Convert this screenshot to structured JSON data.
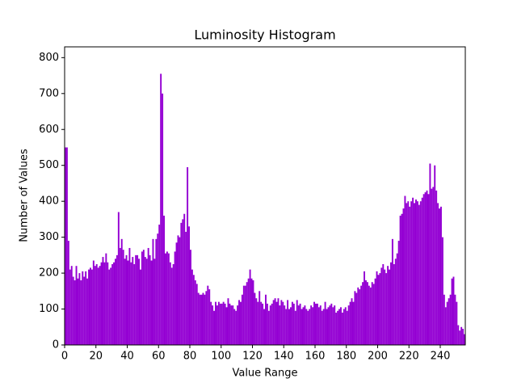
{
  "chart_data": {
    "type": "histogram",
    "title": "Luminosity Histogram",
    "xlabel": "Value Range",
    "ylabel": "Number of Values",
    "color": "#9400d3",
    "grid": false,
    "bins": [
      0,
      1,
      2,
      3,
      4,
      5,
      6,
      7,
      8,
      9,
      10,
      11,
      12,
      13,
      14,
      15,
      16,
      17,
      18,
      19,
      20,
      21,
      22,
      23,
      24,
      25,
      26,
      27,
      28,
      29,
      30,
      31,
      32,
      33,
      34,
      35,
      36,
      37,
      38,
      39,
      40,
      41,
      42,
      43,
      44,
      45,
      46,
      47,
      48,
      49,
      50,
      51,
      52,
      53,
      54,
      55,
      56,
      57,
      58,
      59,
      60,
      61,
      62,
      63,
      64,
      65,
      66,
      67,
      68,
      69,
      70,
      71,
      72,
      73,
      74,
      75,
      76,
      77,
      78,
      79,
      80,
      81,
      82,
      83,
      84,
      85,
      86,
      87,
      88,
      89,
      90,
      91,
      92,
      93,
      94,
      95,
      96,
      97,
      98,
      99,
      100,
      101,
      102,
      103,
      104,
      105,
      106,
      107,
      108,
      109,
      110,
      111,
      112,
      113,
      114,
      115,
      116,
      117,
      118,
      119,
      120,
      121,
      122,
      123,
      124,
      125,
      126,
      127,
      128,
      129,
      130,
      131,
      132,
      133,
      134,
      135,
      136,
      137,
      138,
      139,
      140,
      141,
      142,
      143,
      144,
      145,
      146,
      147,
      148,
      149,
      150,
      151,
      152,
      153,
      154,
      155,
      156,
      157,
      158,
      159,
      160,
      161,
      162,
      163,
      164,
      165,
      166,
      167,
      168,
      169,
      170,
      171,
      172,
      173,
      174,
      175,
      176,
      177,
      178,
      179,
      180,
      181,
      182,
      183,
      184,
      185,
      186,
      187,
      188,
      189,
      190,
      191,
      192,
      193,
      194,
      195,
      196,
      197,
      198,
      199,
      200,
      201,
      202,
      203,
      204,
      205,
      206,
      207,
      208,
      209,
      210,
      211,
      212,
      213,
      214,
      215,
      216,
      217,
      218,
      219,
      220,
      221,
      222,
      223,
      224,
      225,
      226,
      227,
      228,
      229,
      230,
      231,
      232,
      233,
      234,
      235,
      236,
      237,
      238,
      239,
      240,
      241,
      242,
      243,
      244,
      245,
      246,
      247,
      248,
      249,
      250,
      251,
      252,
      253,
      254,
      255,
      256
    ],
    "counts": [
      550,
      550,
      290,
      210,
      220,
      190,
      180,
      220,
      185,
      200,
      180,
      205,
      190,
      205,
      185,
      210,
      215,
      210,
      235,
      220,
      225,
      215,
      220,
      230,
      245,
      230,
      255,
      230,
      210,
      215,
      225,
      230,
      240,
      250,
      370,
      270,
      295,
      265,
      240,
      250,
      235,
      270,
      230,
      245,
      225,
      250,
      250,
      240,
      210,
      260,
      265,
      245,
      240,
      270,
      250,
      235,
      295,
      240,
      295,
      310,
      335,
      755,
      700,
      360,
      255,
      260,
      255,
      230,
      215,
      225,
      260,
      285,
      305,
      300,
      340,
      350,
      365,
      315,
      495,
      330,
      265,
      210,
      195,
      180,
      170,
      145,
      140,
      140,
      145,
      140,
      150,
      165,
      155,
      120,
      110,
      95,
      120,
      110,
      120,
      115,
      115,
      120,
      115,
      105,
      130,
      115,
      110,
      110,
      100,
      95,
      110,
      125,
      120,
      140,
      165,
      165,
      175,
      185,
      210,
      185,
      180,
      145,
      130,
      120,
      150,
      120,
      115,
      100,
      140,
      115,
      95,
      110,
      115,
      125,
      130,
      120,
      130,
      110,
      125,
      120,
      110,
      100,
      125,
      100,
      105,
      120,
      115,
      95,
      125,
      110,
      115,
      100,
      105,
      110,
      100,
      95,
      100,
      110,
      105,
      120,
      115,
      115,
      105,
      110,
      95,
      100,
      120,
      100,
      105,
      110,
      115,
      105,
      110,
      90,
      95,
      100,
      105,
      90,
      100,
      105,
      95,
      110,
      120,
      130,
      120,
      150,
      145,
      160,
      155,
      165,
      175,
      205,
      180,
      175,
      165,
      160,
      175,
      170,
      185,
      205,
      195,
      200,
      215,
      225,
      210,
      200,
      220,
      210,
      230,
      295,
      225,
      240,
      255,
      290,
      360,
      365,
      380,
      415,
      395,
      400,
      385,
      400,
      410,
      395,
      405,
      400,
      390,
      400,
      410,
      420,
      425,
      430,
      420,
      505,
      435,
      440,
      500,
      430,
      395,
      380,
      385,
      300,
      140,
      105,
      120,
      130,
      140,
      185,
      190,
      140,
      120,
      55,
      40,
      50,
      45,
      30
    ],
    "xlim": [
      0,
      256
    ],
    "ylim": [
      0,
      830
    ],
    "xticks": [
      0,
      20,
      40,
      60,
      80,
      100,
      120,
      140,
      160,
      180,
      200,
      220,
      240
    ],
    "yticks": [
      0,
      100,
      200,
      300,
      400,
      500,
      600,
      700,
      800
    ]
  }
}
